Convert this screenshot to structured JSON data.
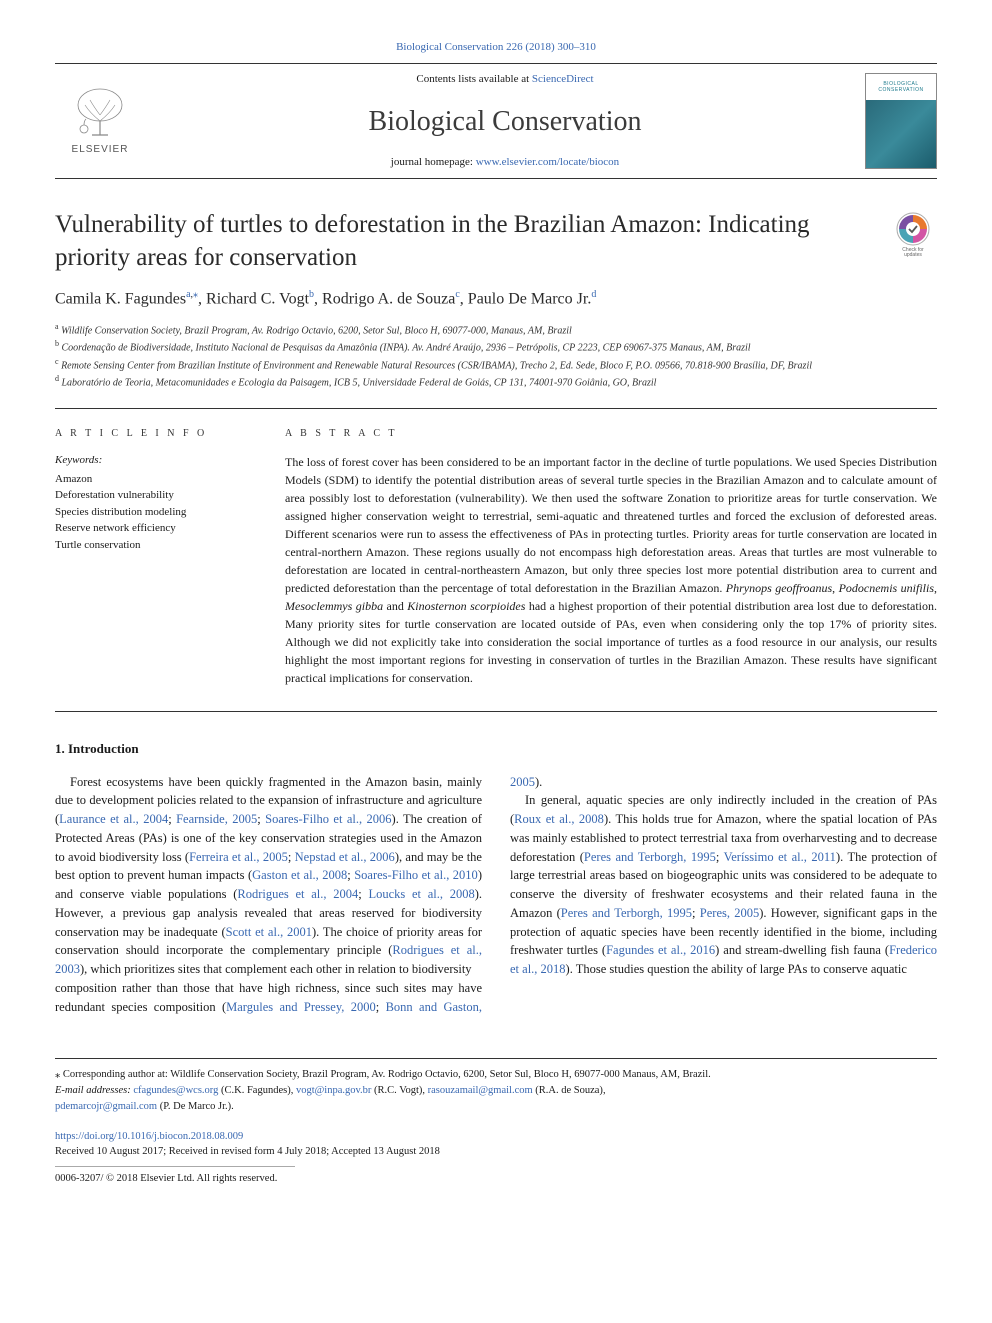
{
  "topLink": {
    "journal": "Biological Conservation",
    "citation": "226 (2018) 300–310"
  },
  "masthead": {
    "contentsPrefix": "Contents lists available at ",
    "contentsLink": "ScienceDirect",
    "journalName": "Biological Conservation",
    "homepagePrefix": "journal homepage: ",
    "homepageLink": "www.elsevier.com/locate/biocon",
    "elsevierName": "ELSEVIER",
    "coverLabel": "BIOLOGICAL CONSERVATION"
  },
  "article": {
    "title": "Vulnerability of turtles to deforestation in the Brazilian Amazon: Indicating priority areas for conservation",
    "updatesLabel": "Check for updates",
    "authors": [
      {
        "name": "Camila K. Fagundes",
        "aff": "a",
        "corr": true
      },
      {
        "name": "Richard C. Vogt",
        "aff": "b",
        "corr": false
      },
      {
        "name": "Rodrigo A. de Souza",
        "aff": "c",
        "corr": false
      },
      {
        "name": "Paulo De Marco Jr.",
        "aff": "d",
        "corr": false
      }
    ],
    "affiliations": [
      {
        "sup": "a",
        "text": "Wildlife Conservation Society, Brazil Program, Av. Rodrigo Octavio, 6200, Setor Sul, Bloco H, 69077-000, Manaus, AM, Brazil"
      },
      {
        "sup": "b",
        "text": "Coordenação de Biodiversidade, Instituto Nacional de Pesquisas da Amazônia (INPA). Av. André Araújo, 2936 – Petrópolis, CP 2223, CEP 69067-375 Manaus, AM, Brazil"
      },
      {
        "sup": "c",
        "text": "Remote Sensing Center from Brazilian Institute of Environment and Renewable Natural Resources (CSR/IBAMA), Trecho 2, Ed. Sede, Bloco F, P.O. 09566, 70.818-900 Brasília, DF, Brazil"
      },
      {
        "sup": "d",
        "text": "Laboratório de Teoria, Metacomunidades e Ecologia da Paisagem, ICB 5, Universidade Federal de Goiás, CP 131, 74001-970 Goiânia, GO, Brazil"
      }
    ]
  },
  "labels": {
    "articleInfo": "A R T I C L E  I N F O",
    "abstract": "A B S T R A C T",
    "keywords": "Keywords:"
  },
  "keywords": [
    "Amazon",
    "Deforestation vulnerability",
    "Species distribution modeling",
    "Reserve network efficiency",
    "Turtle conservation"
  ],
  "abstractText": "The loss of forest cover has been considered to be an important factor in the decline of turtle populations. We used Species Distribution Models (SDM) to identify the potential distribution areas of several turtle species in the Brazilian Amazon and to calculate amount of area possibly lost to deforestation (vulnerability). We then used the software Zonation to prioritize areas for turtle conservation. We assigned higher conservation weight to terrestrial, semi-aquatic and threatened turtles and forced the exclusion of deforested areas. Different scenarios were run to assess the effectiveness of PAs in protecting turtles. Priority areas for turtle conservation are located in central-northern Amazon. These regions usually do not encompass high deforestation areas. Areas that turtles are most vulnerable to deforestation are located in central-northeastern Amazon, but only three species lost more potential distribution area to current and predicted deforestation than the percentage of total deforestation in the Brazilian Amazon. <em>Phrynops geoffroanus</em>, <em>Podocnemis unifilis</em>, <em>Mesoclemmys gibba</em> and <em>Kinosternon scorpioides</em> had a highest proportion of their potential distribution area lost due to deforestation. Many priority sites for turtle conservation are located outside of PAs, even when considering only the top 17% of priority sites. Although we did not explicitly take into consideration the social importance of turtles as a food resource in our analysis, our results highlight the most important regions for investing in conservation of turtles in the Brazilian Amazon. These results have significant practical implications for conservation.",
  "introduction": {
    "heading": "1. Introduction",
    "col1": "Forest ecosystems have been quickly fragmented in the Amazon basin, mainly due to development policies related to the expansion of infrastructure and agriculture (<a class=\"ref\">Laurance et al., 2004</a>; <a class=\"ref\">Fearnside, 2005</a>; <a class=\"ref\">Soares-Filho et al., 2006</a>). The creation of Protected Areas (PAs) is one of the key conservation strategies used in the Amazon to avoid biodiversity loss (<a class=\"ref\">Ferreira et al., 2005</a>; <a class=\"ref\">Nepstad et al., 2006</a>), and may be the best option to prevent human impacts (<a class=\"ref\">Gaston et al., 2008</a>; <a class=\"ref\">Soares-Filho et al., 2010</a>) and conserve viable populations (<a class=\"ref\">Rodrigues et al., 2004</a>; <a class=\"ref\">Loucks et al., 2008</a>). However, a previous gap analysis revealed that areas reserved for biodiversity conservation may be inadequate (<a class=\"ref\">Scott et al., 2001</a>). The choice of priority areas for conservation should incorporate the complementary principle (<a class=\"ref\">Rodrigues et al., 2003</a>), which prioritizes sites that complement each other in relation to biodiversity",
    "col2a": "composition rather than those that have high richness, since such sites may have redundant species composition (<a class=\"ref\">Margules and Pressey, 2000</a>; <a class=\"ref\">Bonn and Gaston, 2005</a>).",
    "col2b": "In general, aquatic species are only indirectly included in the creation of PAs (<a class=\"ref\">Roux et al., 2008</a>). This holds true for Amazon, where the spatial location of PAs was mainly established to protect terrestrial taxa from overharvesting and to decrease deforestation (<a class=\"ref\">Peres and Terborgh, 1995</a>; <a class=\"ref\">Veríssimo et al., 2011</a>). The protection of large terrestrial areas based on biogeographic units was considered to be adequate to conserve the diversity of freshwater ecosystems and their related fauna in the Amazon (<a class=\"ref\">Peres and Terborgh, 1995</a>; <a class=\"ref\">Peres, 2005</a>). However, significant gaps in the protection of aquatic species have been recently identified in the biome, including freshwater turtles (<a class=\"ref\">Fagundes et al., 2016</a>) and stream-dwelling fish fauna (<a class=\"ref\">Frederico et al., 2018</a>). Those studies question the ability of large PAs to conserve aquatic"
  },
  "footnotes": {
    "corrLabel": "⁎ Corresponding author at: ",
    "corrText": "Wildlife Conservation Society, Brazil Program, Av. Rodrigo Octavio, 6200, Setor Sul, Bloco H, 69077-000 Manaus, AM, Brazil.",
    "emailLabel": "E-mail addresses: ",
    "emails": [
      {
        "addr": "cfagundes@wcs.org",
        "who": "(C.K. Fagundes)"
      },
      {
        "addr": "vogt@inpa.gov.br",
        "who": "(R.C. Vogt)"
      },
      {
        "addr": "rasouzamail@gmail.com",
        "who": "(R.A. de Souza)"
      },
      {
        "addr": "pdemarcojr@gmail.com",
        "who": "(P. De Marco Jr.)."
      }
    ]
  },
  "bottom": {
    "doi": "https://doi.org/10.1016/j.biocon.2018.08.009",
    "history": "Received 10 August 2017; Received in revised form 4 July 2018; Accepted 13 August 2018",
    "issn": "0006-3207/ © 2018 Elsevier Ltd. All rights reserved."
  },
  "colors": {
    "link": "#3968b1",
    "coverBg": "#1d7a8c",
    "badgeOrange": "#e8792f",
    "badgeTeal": "#4aa3b5",
    "badgePink": "#d254a4"
  }
}
